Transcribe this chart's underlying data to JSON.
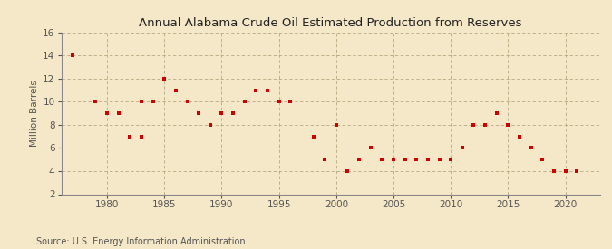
{
  "title": "Annual Alabama Crude Oil Estimated Production from Reserves",
  "ylabel": "Million Barrels",
  "source": "Source: U.S. Energy Information Administration",
  "background_color": "#f5e8c8",
  "plot_bg_color": "#f5e8c8",
  "marker_color": "#cc0000",
  "xlim": [
    1976,
    2023
  ],
  "ylim": [
    2,
    16
  ],
  "yticks": [
    2,
    4,
    6,
    8,
    10,
    12,
    14,
    16
  ],
  "xticks": [
    1980,
    1985,
    1990,
    1995,
    2000,
    2005,
    2010,
    2015,
    2020
  ],
  "data": [
    [
      1977,
      14.0
    ],
    [
      1979,
      10.0
    ],
    [
      1980,
      9.0
    ],
    [
      1981,
      9.0
    ],
    [
      1982,
      7.0
    ],
    [
      1983,
      7.0
    ],
    [
      1983,
      10.0
    ],
    [
      1984,
      10.0
    ],
    [
      1985,
      12.0
    ],
    [
      1986,
      11.0
    ],
    [
      1987,
      10.0
    ],
    [
      1988,
      9.0
    ],
    [
      1989,
      8.0
    ],
    [
      1990,
      9.0
    ],
    [
      1991,
      9.0
    ],
    [
      1992,
      10.0
    ],
    [
      1993,
      11.0
    ],
    [
      1994,
      11.0
    ],
    [
      1995,
      10.0
    ],
    [
      1996,
      10.0
    ],
    [
      1998,
      7.0
    ],
    [
      1999,
      5.0
    ],
    [
      2000,
      8.0
    ],
    [
      2001,
      4.0
    ],
    [
      2002,
      5.0
    ],
    [
      2003,
      6.0
    ],
    [
      2004,
      5.0
    ],
    [
      2005,
      5.0
    ],
    [
      2006,
      5.0
    ],
    [
      2007,
      5.0
    ],
    [
      2008,
      5.0
    ],
    [
      2009,
      5.0
    ],
    [
      2010,
      5.0
    ],
    [
      2011,
      6.0
    ],
    [
      2012,
      8.0
    ],
    [
      2013,
      8.0
    ],
    [
      2014,
      9.0
    ],
    [
      2015,
      8.0
    ],
    [
      2016,
      7.0
    ],
    [
      2017,
      6.0
    ],
    [
      2018,
      5.0
    ],
    [
      2019,
      4.0
    ],
    [
      2020,
      4.0
    ],
    [
      2021,
      4.0
    ]
  ]
}
